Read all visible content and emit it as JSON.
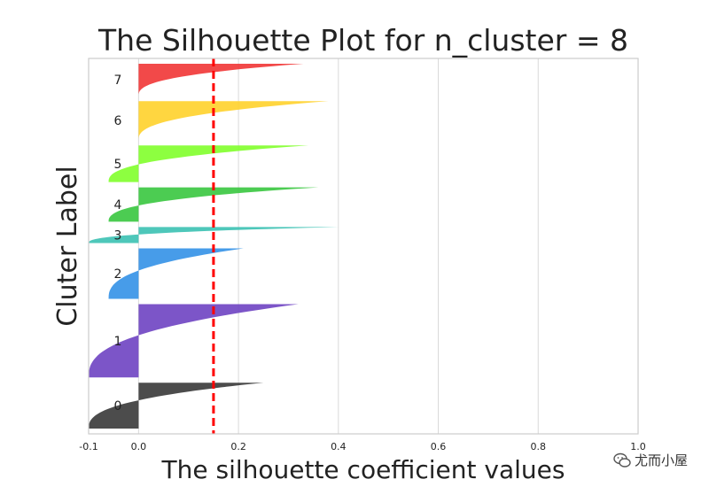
{
  "chart_data": {
    "type": "area",
    "title": "The Silhouette Plot for n_cluster = 8",
    "xlabel": "The silhouette coefficient values",
    "ylabel": "Cluter Label",
    "xlim": [
      -0.1,
      1.0
    ],
    "xticks": [
      "-0.1",
      "0.0",
      "0.2",
      "0.4",
      "0.6",
      "0.8",
      "1.0"
    ],
    "grid": true,
    "average_silhouette": 0.15,
    "average_line_color": "#ff0000",
    "clusters": [
      {
        "label": "0",
        "color": "#333333",
        "size": 100,
        "min": -0.1,
        "max": 0.25
      },
      {
        "label": "1",
        "color": "#6a3dc0",
        "size": 160,
        "min": -0.1,
        "max": 0.32
      },
      {
        "label": "2",
        "color": "#2e8ee6",
        "size": 110,
        "min": -0.06,
        "max": 0.21
      },
      {
        "label": "3",
        "color": "#35bfb0",
        "size": 35,
        "min": -0.1,
        "max": 0.4
      },
      {
        "label": "4",
        "color": "#33c53a",
        "size": 75,
        "min": -0.06,
        "max": 0.36
      },
      {
        "label": "5",
        "color": "#7dff26",
        "size": 80,
        "min": -0.06,
        "max": 0.34
      },
      {
        "label": "6",
        "color": "#ffd025",
        "size": 85,
        "min": 0.0,
        "max": 0.38
      },
      {
        "label": "7",
        "color": "#f03030",
        "size": 70,
        "min": 0.0,
        "max": 0.33
      }
    ]
  },
  "watermark": {
    "text": "尤而小屋",
    "icon": "wechat-icon"
  }
}
